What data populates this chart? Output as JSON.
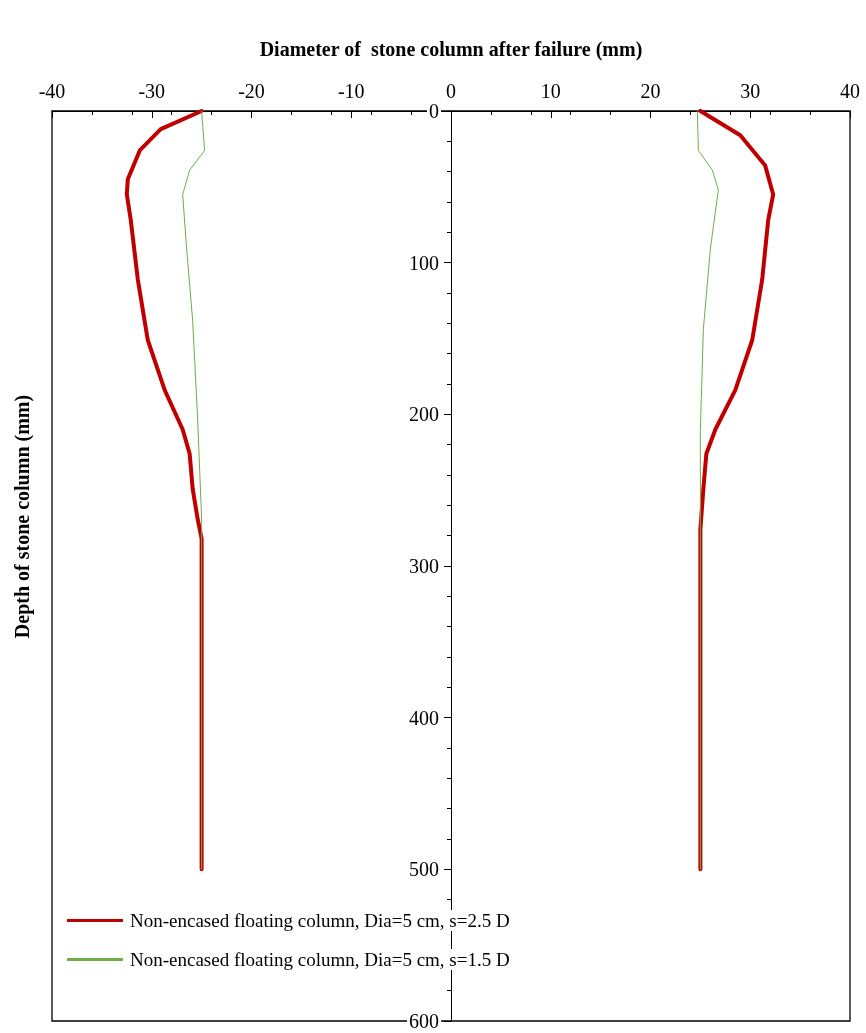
{
  "chart_data": {
    "type": "line",
    "xlabel": "Diameter of  stone column after failure (mm)",
    "ylabel": "Depth of stone column (mm)",
    "xlim": [
      -40,
      40
    ],
    "xticks": [
      -40,
      -30,
      -20,
      -10,
      0,
      10,
      20,
      30,
      40
    ],
    "ylim": [
      600,
      0
    ],
    "yticks": [
      0,
      100,
      200,
      300,
      400,
      500,
      600
    ],
    "grid": false,
    "legend": "bottom left",
    "marker": "none",
    "line_style": "solid",
    "series": [
      {
        "name": "Non-encased floating column, Dia=5 cm, s=2.5 D",
        "color": "#c00000",
        "x": [
          -25,
          -29.1,
          -31.2,
          -32.4,
          -32.5,
          -32.1,
          -31.4,
          -30.4,
          -28.7,
          -26.9,
          -26.2,
          -25.9,
          -25.4,
          -25,
          -25,
          null,
          25,
          29,
          31.5,
          32.3,
          31.8,
          31.2,
          30.2,
          28.5,
          26.5,
          25.6,
          25.3,
          25,
          25
        ],
        "values": [
          0,
          12,
          26,
          45,
          55,
          72,
          111,
          151,
          184,
          210,
          226,
          249,
          269,
          282,
          500,
          null,
          0,
          16,
          36,
          55,
          72,
          111,
          151,
          184,
          210,
          226,
          249,
          276,
          500
        ]
      },
      {
        "name": "Non-encased floating column, Dia=5 cm, s=1.5 D",
        "color": "#70ad47",
        "x": [
          -25,
          -24.7,
          -26.2,
          -26.9,
          -26.5,
          -25.9,
          -25.4,
          -25,
          -25,
          null,
          24.7,
          24.8,
          26.2,
          26.8,
          26,
          25.3,
          25,
          25
        ],
        "values": [
          0,
          26,
          39,
          55,
          91,
          138,
          203,
          269,
          500,
          null,
          0,
          26,
          39,
          52,
          91,
          144,
          210,
          500
        ]
      }
    ]
  }
}
